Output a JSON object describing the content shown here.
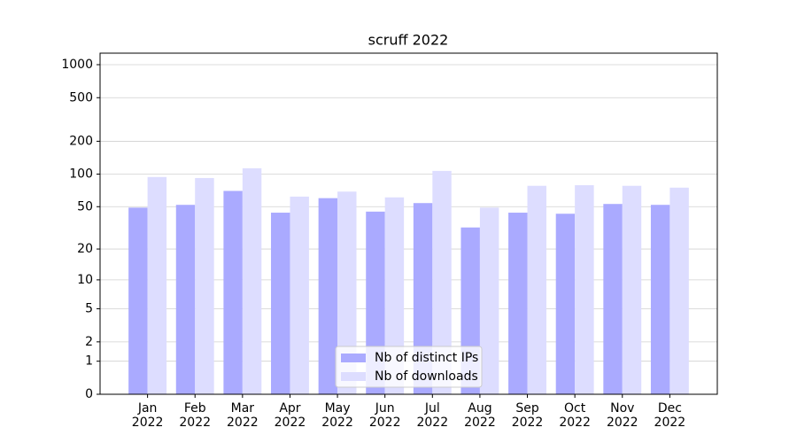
{
  "chart_data": {
    "type": "bar",
    "title": "scruff 2022",
    "categories": [
      "Jan\n2022",
      "Feb\n2022",
      "Mar\n2022",
      "Apr\n2022",
      "May\n2022",
      "Jun\n2022",
      "Jul\n2022",
      "Aug\n2022",
      "Sep\n2022",
      "Oct\n2022",
      "Nov\n2022",
      "Dec\n2022"
    ],
    "series": [
      {
        "name": "Nb of distinct IPs",
        "color": "#aaaaff",
        "values": [
          49,
          52,
          70,
          44,
          60,
          45,
          54,
          32,
          44,
          43,
          53,
          52
        ]
      },
      {
        "name": "Nb of downloads",
        "color": "#ddddff",
        "values": [
          94,
          92,
          113,
          62,
          69,
          61,
          107,
          49,
          78,
          79,
          78,
          75
        ]
      }
    ],
    "yscale": "log1p",
    "ylim": [
      0,
      1273
    ],
    "yticks": [
      0,
      1,
      2,
      5,
      10,
      20,
      50,
      100,
      200,
      500,
      1000
    ],
    "grid": true,
    "legend": "lower center"
  }
}
